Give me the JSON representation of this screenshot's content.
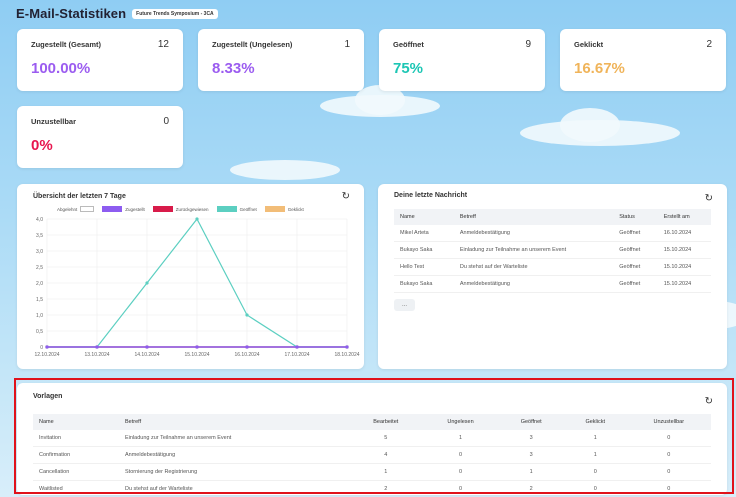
{
  "header": {
    "title": "E-Mail-Statistiken",
    "event_badge": "Future Trends Symposium - 3CA"
  },
  "stats": [
    {
      "label": "Zugestellt (Gesamt)",
      "count": "12",
      "value": "100.00%",
      "color": "#9b5cf0"
    },
    {
      "label": "Zugestellt (Ungelesen)",
      "count": "1",
      "value": "8.33%",
      "color": "#9b5cf0"
    },
    {
      "label": "Geöffnet",
      "count": "9",
      "value": "75%",
      "color": "#1cc6b4"
    },
    {
      "label": "Geklickt",
      "count": "2",
      "value": "16.67%",
      "color": "#f0b45a"
    },
    {
      "label": "Unzustellbar",
      "count": "0",
      "value": "0%",
      "color": "#e8154e"
    }
  ],
  "chart_panel": {
    "title": "Übersicht der letzten 7 Tage"
  },
  "chart_data": {
    "type": "line",
    "categories": [
      "12.10.2024",
      "13.10.2024",
      "14.10.2024",
      "15.10.2024",
      "16.10.2024",
      "17.10.2024",
      "18.10.2024"
    ],
    "y_ticks": [
      "0",
      "0,5",
      "1,0",
      "1,5",
      "2,0",
      "2,5",
      "3,0",
      "3,5",
      "4,0"
    ],
    "ylim": [
      0,
      4
    ],
    "series": [
      {
        "name": "Abgelehnt",
        "color": "#8a8a8a",
        "values": [
          0,
          0,
          0,
          0,
          0,
          0,
          0
        ]
      },
      {
        "name": "Zugestellt",
        "color": "#8d5cf0",
        "values": [
          0,
          0,
          0,
          0,
          0,
          0,
          0
        ]
      },
      {
        "name": "Zurückgewiesen",
        "color": "#d81b4a",
        "values": [
          0,
          0,
          0,
          0,
          0,
          0,
          0
        ]
      },
      {
        "name": "Geöffnet",
        "color": "#5ccfc1",
        "values": [
          0,
          0,
          2,
          4,
          1,
          0,
          0
        ]
      },
      {
        "name": "Geklickt",
        "color": "#f2bd78",
        "values": [
          0,
          0,
          0,
          0,
          0,
          0,
          0
        ]
      }
    ]
  },
  "messages": {
    "title": "Deine letzte Nachricht",
    "columns": [
      "Name",
      "Betreff",
      "Status",
      "Erstellt am"
    ],
    "rows": [
      [
        "Mikel Arteta",
        "Anmeldebestätigung",
        "Geöffnet",
        "16.10.2024"
      ],
      [
        "Bukayo Saka",
        "Einladung zur Teilnahme an unserem Event",
        "Geöffnet",
        "15.10.2024"
      ],
      [
        "Hello Test",
        "Du stehst auf der Warteliste",
        "Geöffnet",
        "15.10.2024"
      ],
      [
        "Bukayo Saka",
        "Anmeldebestätigung",
        "Geöffnet",
        "15.10.2024"
      ]
    ],
    "more_label": "..."
  },
  "templates": {
    "title": "Vorlagen",
    "columns": [
      "Name",
      "Betreff",
      "Bearbeitet",
      "Ungelesen",
      "Geöffnet",
      "Geklickt",
      "Unzustellbar"
    ],
    "rows": [
      [
        "Invitation",
        "Einladung zur Teilnahme an unserem Event",
        "5",
        "1",
        "3",
        "1",
        "0"
      ],
      [
        "Confirmation",
        "Anmeldebestätigung",
        "4",
        "0",
        "3",
        "1",
        "0"
      ],
      [
        "Cancellation",
        "Stornierung der Registrierung",
        "1",
        "0",
        "1",
        "0",
        "0"
      ],
      [
        "Waitlisted",
        "Du stehst auf der Warteliste",
        "2",
        "0",
        "2",
        "0",
        "0"
      ]
    ]
  },
  "icons": {
    "refresh": "↻"
  }
}
